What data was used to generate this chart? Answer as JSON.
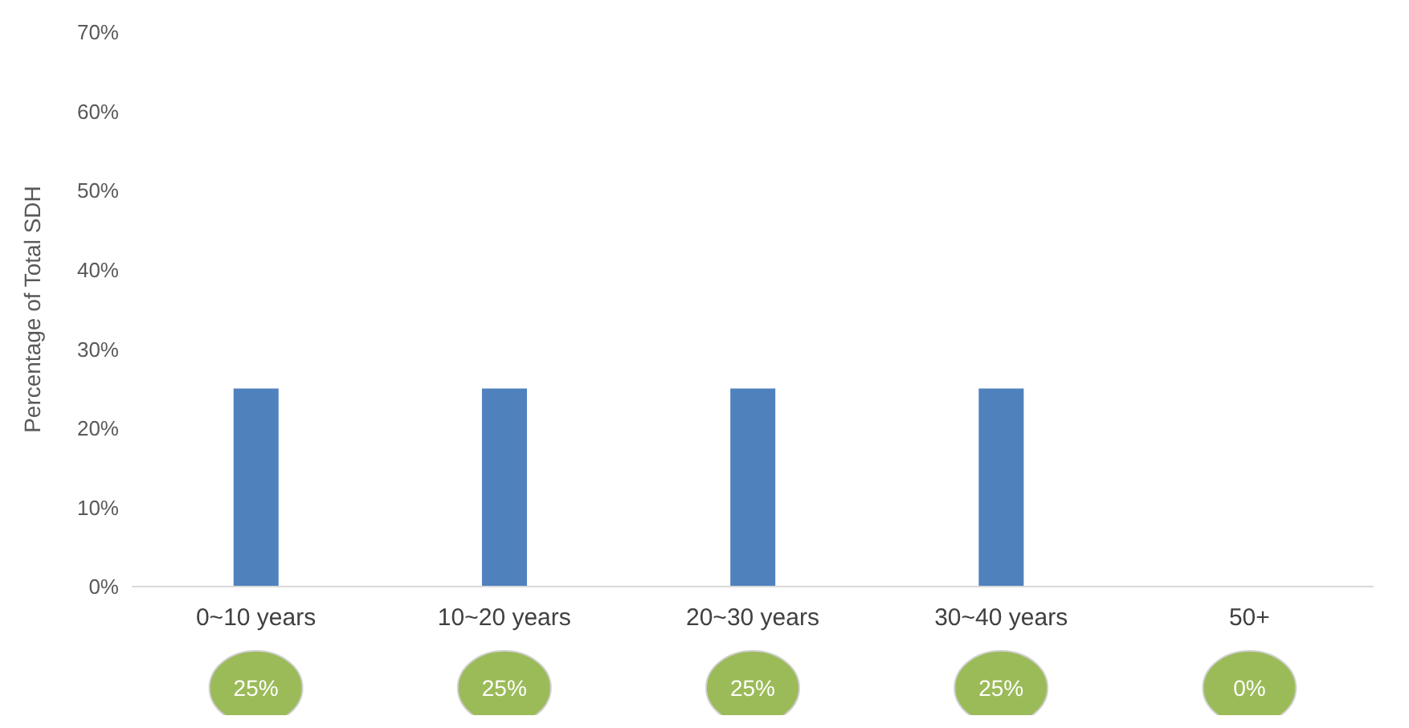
{
  "chart_data": {
    "type": "bar",
    "ylabel": "Percentage of Total SDH",
    "categories": [
      "0~10 years",
      "10~20 years",
      "20~30 years",
      "30~40 years",
      "50+"
    ],
    "values": [
      25,
      25,
      25,
      25,
      0
    ],
    "color": "#4f81bd",
    "value_labels": [
      "25%",
      "25%",
      "25%",
      "25%",
      "0%"
    ],
    "ylim": [
      0,
      70
    ],
    "yticks": [
      {
        "value": 0,
        "label": "0%"
      },
      {
        "value": 10,
        "label": "10%"
      },
      {
        "value": 20,
        "label": "20%"
      },
      {
        "value": 30,
        "label": "30%"
      },
      {
        "value": 40,
        "label": "40%"
      },
      {
        "value": 50,
        "label": "50%"
      },
      {
        "value": 60,
        "label": "60%"
      },
      {
        "value": 70,
        "label": "70%"
      }
    ],
    "grid": false
  }
}
